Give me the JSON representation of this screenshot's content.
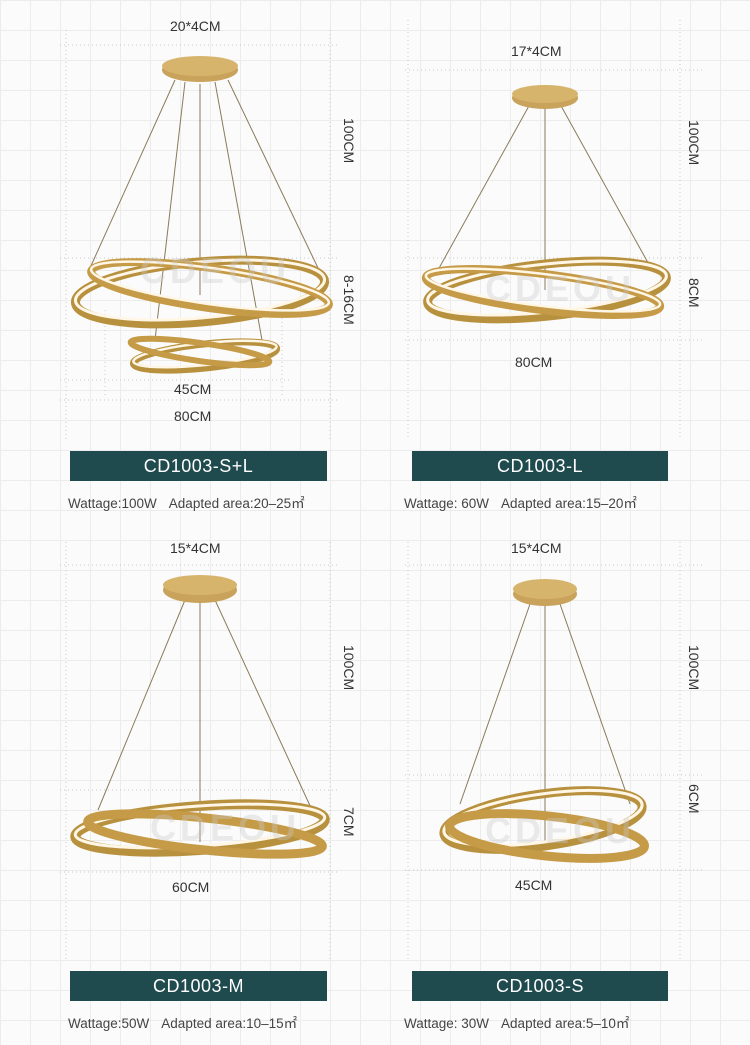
{
  "colors": {
    "bar": "#1f4a4e",
    "gold": "#b8913f",
    "led": "#fff6e6"
  },
  "watermark": "CDEOU",
  "products": [
    {
      "model": "CD1003-S+L",
      "wattage": "Wattage:100W",
      "area": "Adapted area:20–25㎡",
      "canopy": "20*4CM",
      "height": "100CM",
      "ring_height": "8-16CM",
      "widths": [
        "45CM",
        "80CM"
      ]
    },
    {
      "model": "CD1003-L",
      "wattage": "Wattage: 60W",
      "area": "Adapted area:15–20㎡",
      "canopy": "17*4CM",
      "height": "100CM",
      "ring_height": "8CM",
      "widths": [
        "80CM"
      ]
    },
    {
      "model": "CD1003-M",
      "wattage": "Wattage:50W",
      "area": "Adapted area:10–15㎡",
      "canopy": "15*4CM",
      "height": "100CM",
      "ring_height": "7CM",
      "widths": [
        "60CM"
      ]
    },
    {
      "model": "CD1003-S",
      "wattage": "Wattage: 30W",
      "area": "Adapted area:5–10㎡",
      "canopy": "15*4CM",
      "height": "100CM",
      "ring_height": "6CM",
      "widths": [
        "45CM"
      ]
    }
  ]
}
